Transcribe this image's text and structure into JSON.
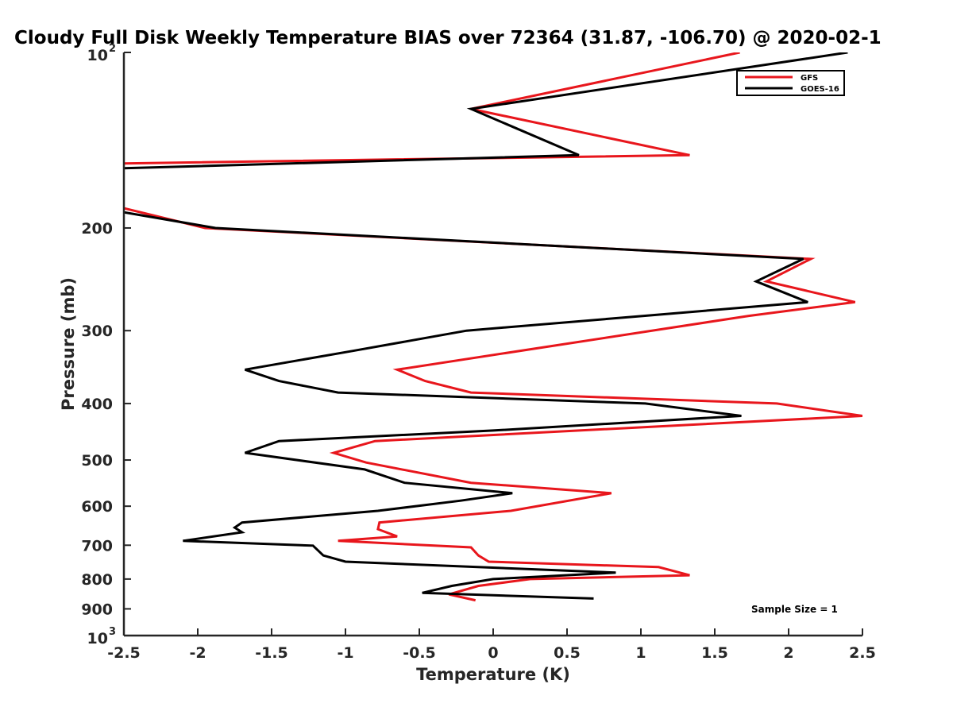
{
  "chart_data": {
    "type": "line",
    "title": "Cloudy Full Disk Weekly Temperature BIAS over 72364 (31.87, -106.70) @ 2020-02-1",
    "xlabel": "Temperature (K)",
    "ylabel": "Pressure (mb)",
    "xlim": [
      -2.5,
      2.5
    ],
    "ylim": [
      100,
      1000
    ],
    "y_scale": "log",
    "y_reversed": true,
    "grid": false,
    "legend_position": "top-right",
    "x_ticks": [
      "-2.5",
      "-2",
      "-1.5",
      "-1",
      "-0.5",
      "0",
      "0.5",
      "1",
      "1.5",
      "2",
      "2.5"
    ],
    "x_tick_values": [
      -2.5,
      -2,
      -1.5,
      -1,
      -0.5,
      0,
      0.5,
      1,
      1.5,
      2,
      2.5
    ],
    "y_ticks": [
      {
        "value": 100,
        "base": "10",
        "exp": "2"
      },
      {
        "value": 200,
        "base": "200",
        "exp": ""
      },
      {
        "value": 300,
        "base": "300",
        "exp": ""
      },
      {
        "value": 400,
        "base": "400",
        "exp": ""
      },
      {
        "value": 500,
        "base": "500",
        "exp": ""
      },
      {
        "value": 600,
        "base": "600",
        "exp": ""
      },
      {
        "value": 700,
        "base": "700",
        "exp": ""
      },
      {
        "value": 800,
        "base": "800",
        "exp": ""
      },
      {
        "value": 900,
        "base": "900",
        "exp": ""
      },
      {
        "value": 1000,
        "base": "10",
        "exp": "3"
      }
    ],
    "annotation": "Sample Size = 1",
    "series": [
      {
        "name": "GFS",
        "color": "#e8161c",
        "points": [
          [
            1.67,
            100
          ],
          [
            -0.15,
            125
          ],
          [
            1.33,
            150
          ],
          [
            -2.5,
            155
          ],
          [
            null,
            null
          ],
          [
            -2.5,
            185
          ],
          [
            -1.95,
            200
          ],
          [
            2.15,
            226
          ],
          [
            1.85,
            247
          ],
          [
            2.45,
            268
          ],
          [
            1.73,
            283
          ],
          [
            -0.65,
            350
          ],
          [
            -0.46,
            366
          ],
          [
            -0.15,
            383
          ],
          [
            1.92,
            400
          ],
          [
            2.5,
            420
          ],
          [
            -0.8,
            464
          ],
          [
            -1.08,
            486
          ],
          [
            -0.86,
            505
          ],
          [
            -0.15,
            547
          ],
          [
            0.8,
            570
          ],
          [
            0.12,
            611
          ],
          [
            -0.77,
            640
          ],
          [
            -0.78,
            657
          ],
          [
            -0.65,
            676
          ],
          [
            -1.05,
            688
          ],
          [
            -0.15,
            706
          ],
          [
            -0.1,
            729
          ],
          [
            -0.03,
            747
          ],
          [
            1.12,
            763
          ],
          [
            1.33,
            788
          ],
          [
            0.25,
            800
          ],
          [
            -0.1,
            822
          ],
          [
            -0.3,
            850
          ],
          [
            -0.12,
            870
          ]
        ]
      },
      {
        "name": "GOES-16",
        "color": "#000000",
        "points": [
          [
            2.4,
            100
          ],
          [
            -0.15,
            125
          ],
          [
            0.58,
            150
          ],
          [
            -2.5,
            158
          ],
          [
            null,
            null
          ],
          [
            -2.5,
            188
          ],
          [
            -1.88,
            200
          ],
          [
            2.1,
            226
          ],
          [
            1.78,
            247
          ],
          [
            2.13,
            268
          ],
          [
            1.02,
            283
          ],
          [
            -0.18,
            300
          ],
          [
            -0.95,
            325
          ],
          [
            -1.68,
            350
          ],
          [
            -1.45,
            366
          ],
          [
            -1.05,
            383
          ],
          [
            1.03,
            400
          ],
          [
            1.68,
            420
          ],
          [
            0.0,
            445
          ],
          [
            -1.45,
            464
          ],
          [
            -1.68,
            486
          ],
          [
            -0.87,
            519
          ],
          [
            -0.6,
            547
          ],
          [
            0.13,
            570
          ],
          [
            -0.22,
            587
          ],
          [
            -0.78,
            611
          ],
          [
            -1.7,
            640
          ],
          [
            -1.75,
            653
          ],
          [
            -1.7,
            665
          ],
          [
            -2.1,
            688
          ],
          [
            -1.22,
            701
          ],
          [
            -1.15,
            729
          ],
          [
            -1.0,
            747
          ],
          [
            0.83,
            780
          ],
          [
            0.0,
            800
          ],
          [
            -0.28,
            822
          ],
          [
            -0.48,
            845
          ],
          [
            0.68,
            864
          ]
        ]
      }
    ]
  }
}
